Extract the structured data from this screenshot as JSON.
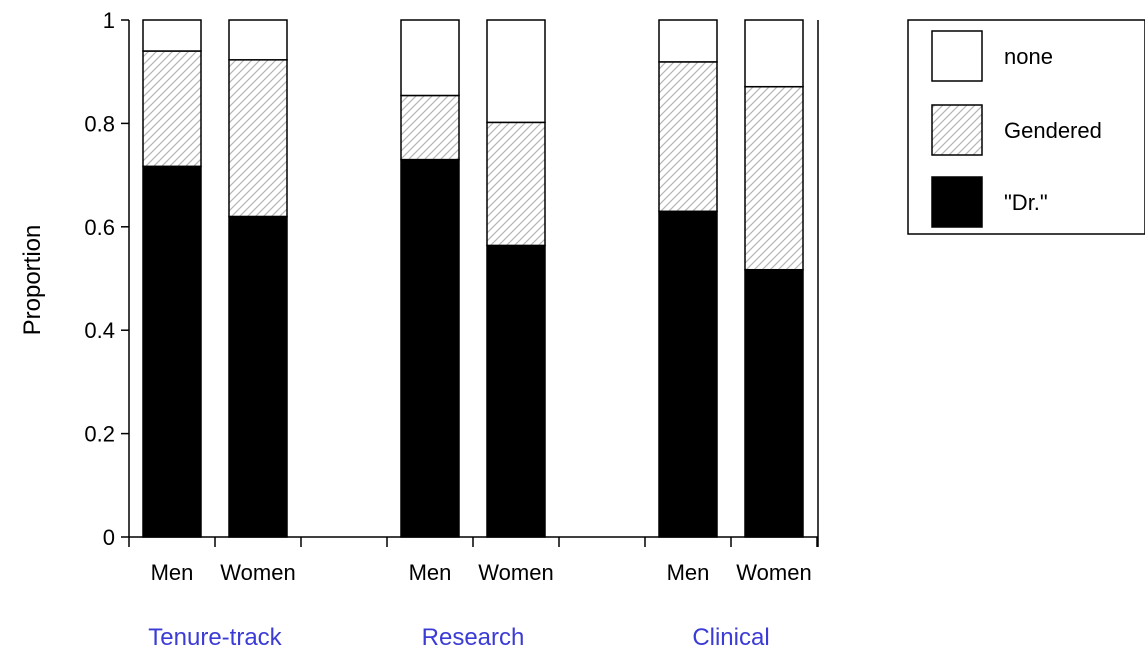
{
  "chart_data": {
    "type": "bar",
    "stacked": true,
    "ylabel": "Proportion",
    "ylim": [
      0,
      1
    ],
    "yticks": [
      "0",
      "0.2",
      "0.4",
      "0.6",
      "0.8",
      "1"
    ],
    "groups": [
      {
        "label": "Tenure-track",
        "bars": [
          {
            "label": "Men",
            "dr": 0.717,
            "gendered": 0.223,
            "none": 0.06
          },
          {
            "label": "Women",
            "dr": 0.62,
            "gendered": 0.303,
            "none": 0.077
          }
        ]
      },
      {
        "label": "Research",
        "bars": [
          {
            "label": "Men",
            "dr": 0.73,
            "gendered": 0.124,
            "none": 0.146
          },
          {
            "label": "Women",
            "dr": 0.564,
            "gendered": 0.238,
            "none": 0.198
          }
        ]
      },
      {
        "label": "Clinical",
        "bars": [
          {
            "label": "Men",
            "dr": 0.63,
            "gendered": 0.289,
            "none": 0.081
          },
          {
            "label": "Women",
            "dr": 0.517,
            "gendered": 0.354,
            "none": 0.129
          }
        ]
      }
    ],
    "legend": {
      "position": "right",
      "entries": [
        {
          "key": "none",
          "label": "none",
          "color": "#ffffff",
          "pattern": "solid"
        },
        {
          "key": "gendered",
          "label": "Gendered",
          "color": "#ffffff",
          "pattern": "hatch"
        },
        {
          "key": "dr",
          "label": "\"Dr.\"",
          "color": "#000000",
          "pattern": "solid"
        }
      ]
    },
    "hatch_color": "#b5b5b5",
    "group_label_color": "#3b3bd6"
  }
}
